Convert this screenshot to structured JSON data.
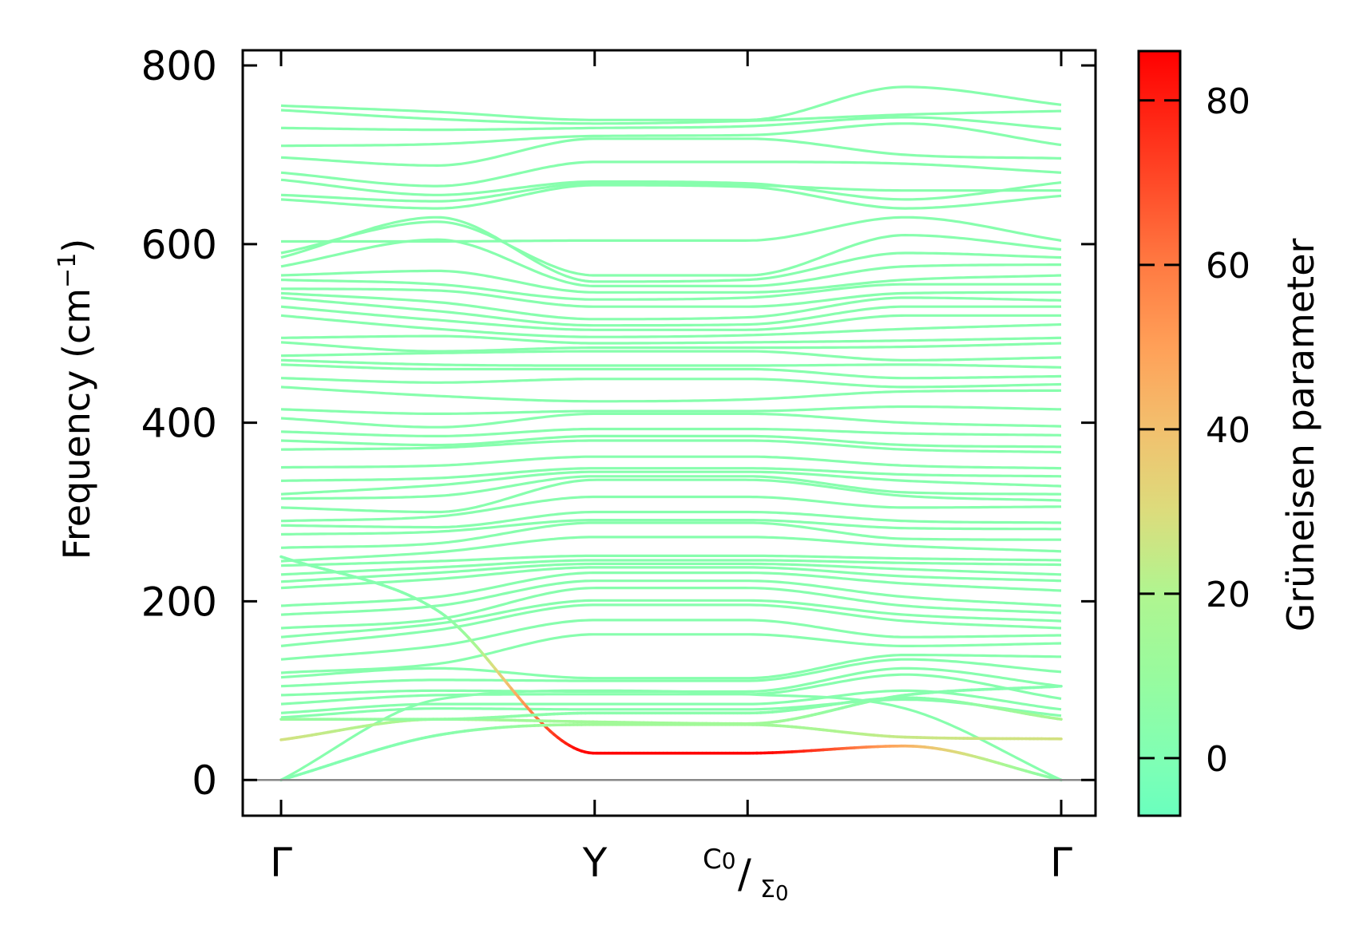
{
  "chart_data": {
    "type": "line",
    "title": "",
    "xlabel": "",
    "ylabel": "Frequency (cm⁻¹)",
    "ylabel_parts": {
      "main": "Frequency (cm",
      "sup": "−1",
      "close": ")"
    },
    "ylim": [
      -40,
      817
    ],
    "yticks": [
      0,
      200,
      400,
      600,
      800
    ],
    "ytick_labels": [
      "0",
      "200",
      "400",
      "600",
      "800"
    ],
    "kpoints": [
      {
        "label": "Γ",
        "x": 0
      },
      {
        "label": "Y",
        "x": 0.402
      },
      {
        "label_main": "C",
        "label_sub1": "0",
        "label_sep": "/",
        "label_main2": "Σ",
        "label_sub2": "0",
        "x": 0.598
      },
      {
        "label": "Γ",
        "x": 1.0
      }
    ],
    "x_nodes": [
      0,
      0.2,
      0.402,
      0.598,
      0.8,
      1.0
    ],
    "zero_line": 0,
    "default_gamma": 3,
    "bands": [
      [
        755,
        748,
        739,
        739,
        776,
        756
      ],
      [
        750,
        740,
        735,
        738,
        745,
        749
      ],
      [
        730,
        728,
        730,
        732,
        742,
        729
      ],
      [
        710,
        712,
        721,
        722,
        735,
        711
      ],
      [
        697,
        688,
        718,
        718,
        700,
        696
      ],
      [
        680,
        665,
        692,
        692,
        690,
        680
      ],
      [
        672,
        655,
        670,
        668,
        650,
        669
      ],
      [
        655,
        648,
        668,
        666,
        660,
        660
      ],
      [
        650,
        640,
        666,
        664,
        640,
        654
      ],
      [
        603,
        603,
        604,
        604,
        630,
        604
      ],
      [
        590,
        625,
        565,
        565,
        610,
        594
      ],
      [
        585,
        630,
        558,
        560,
        590,
        585
      ],
      [
        575,
        605,
        553,
        553,
        575,
        577
      ],
      [
        565,
        570,
        546,
        546,
        560,
        565
      ],
      [
        560,
        555,
        538,
        540,
        555,
        555
      ],
      [
        550,
        548,
        530,
        530,
        545,
        546
      ],
      [
        545,
        535,
        516,
        518,
        540,
        537
      ],
      [
        540,
        525,
        509,
        510,
        530,
        530
      ],
      [
        530,
        515,
        504,
        504,
        520,
        520
      ],
      [
        520,
        505,
        496,
        498,
        505,
        510
      ],
      [
        495,
        497,
        489,
        490,
        492,
        495
      ],
      [
        490,
        480,
        484,
        484,
        485,
        489
      ],
      [
        475,
        478,
        480,
        480,
        470,
        473
      ],
      [
        470,
        465,
        464,
        464,
        465,
        462
      ],
      [
        465,
        460,
        460,
        460,
        450,
        452
      ],
      [
        450,
        445,
        449,
        449,
        440,
        443
      ],
      [
        440,
        430,
        424,
        426,
        435,
        436
      ],
      [
        415,
        410,
        413,
        413,
        418,
        415
      ],
      [
        405,
        395,
        410,
        410,
        400,
        396
      ],
      [
        390,
        385,
        393,
        393,
        388,
        386
      ],
      [
        380,
        375,
        385,
        385,
        375,
        373
      ],
      [
        370,
        372,
        380,
        380,
        370,
        367
      ],
      [
        350,
        352,
        362,
        362,
        352,
        349
      ],
      [
        335,
        338,
        349,
        349,
        342,
        340
      ],
      [
        320,
        330,
        345,
        345,
        335,
        329
      ],
      [
        315,
        318,
        340,
        340,
        322,
        320
      ],
      [
        305,
        300,
        336,
        336,
        318,
        313
      ],
      [
        290,
        295,
        317,
        317,
        305,
        306
      ],
      [
        285,
        283,
        300,
        300,
        290,
        288
      ],
      [
        275,
        278,
        291,
        291,
        282,
        281
      ],
      [
        260,
        265,
        288,
        288,
        270,
        269
      ],
      [
        245,
        255,
        272,
        272,
        262,
        256
      ],
      [
        240,
        245,
        251,
        251,
        248,
        246
      ],
      [
        230,
        238,
        246,
        246,
        243,
        241
      ],
      [
        222,
        232,
        242,
        242,
        236,
        230
      ],
      [
        215,
        225,
        238,
        238,
        228,
        223
      ],
      [
        195,
        205,
        232,
        232,
        220,
        212
      ],
      [
        185,
        195,
        223,
        223,
        205,
        195
      ],
      [
        170,
        180,
        215,
        215,
        195,
        187
      ],
      [
        160,
        175,
        201,
        201,
        185,
        178
      ],
      [
        150,
        168,
        196,
        196,
        178,
        170
      ],
      [
        135,
        150,
        179,
        179,
        160,
        162
      ],
      [
        120,
        130,
        163,
        163,
        150,
        153
      ],
      [
        115,
        125,
        114,
        114,
        140,
        138
      ],
      [
        105,
        112,
        111,
        111,
        135,
        121
      ],
      [
        95,
        100,
        99,
        99,
        125,
        105
      ],
      [
        85,
        95,
        96,
        96,
        118,
        91
      ],
      [
        75,
        85,
        85,
        85,
        100,
        79
      ],
      [
        70,
        80,
        79,
        79,
        90,
        72
      ],
      [
        0,
        90,
        100,
        96,
        80,
        0
      ]
    ],
    "colored_bands": [
      {
        "freq": [
          250,
          190,
          30,
          30,
          38,
          0
        ],
        "gamma": [
          2,
          4,
          86,
          86,
          45,
          2
        ]
      },
      {
        "freq": [
          0,
          50,
          62,
          62,
          48,
          46
        ],
        "gamma": [
          1,
          3,
          14,
          14,
          25,
          28
        ]
      },
      {
        "freq": [
          45,
          68,
          65,
          63,
          95,
          105
        ],
        "gamma": [
          28,
          16,
          14,
          14,
          3,
          2
        ]
      },
      {
        "freq": [
          68,
          68,
          75,
          75,
          92,
          68
        ],
        "gamma": [
          10,
          8,
          4,
          4,
          3,
          18
        ]
      }
    ],
    "colorbar": {
      "label": "Grüneisen parameter",
      "vmin": -7,
      "vmax": 86,
      "ticks": [
        0,
        20,
        40,
        60,
        80
      ],
      "tick_labels": [
        "0",
        "20",
        "40",
        "60",
        "80"
      ],
      "colors": [
        {
          "v": -7,
          "c": "#6affbe"
        },
        {
          "v": 0,
          "c": "#80ffb4"
        },
        {
          "v": 10,
          "c": "#98fb9e"
        },
        {
          "v": 20,
          "c": "#b0f590"
        },
        {
          "v": 30,
          "c": "#dcdc7c"
        },
        {
          "v": 40,
          "c": "#f2c06e"
        },
        {
          "v": 50,
          "c": "#ffa058"
        },
        {
          "v": 60,
          "c": "#ff7a42"
        },
        {
          "v": 70,
          "c": "#ff4a28"
        },
        {
          "v": 86,
          "c": "#ff0000"
        }
      ]
    }
  }
}
